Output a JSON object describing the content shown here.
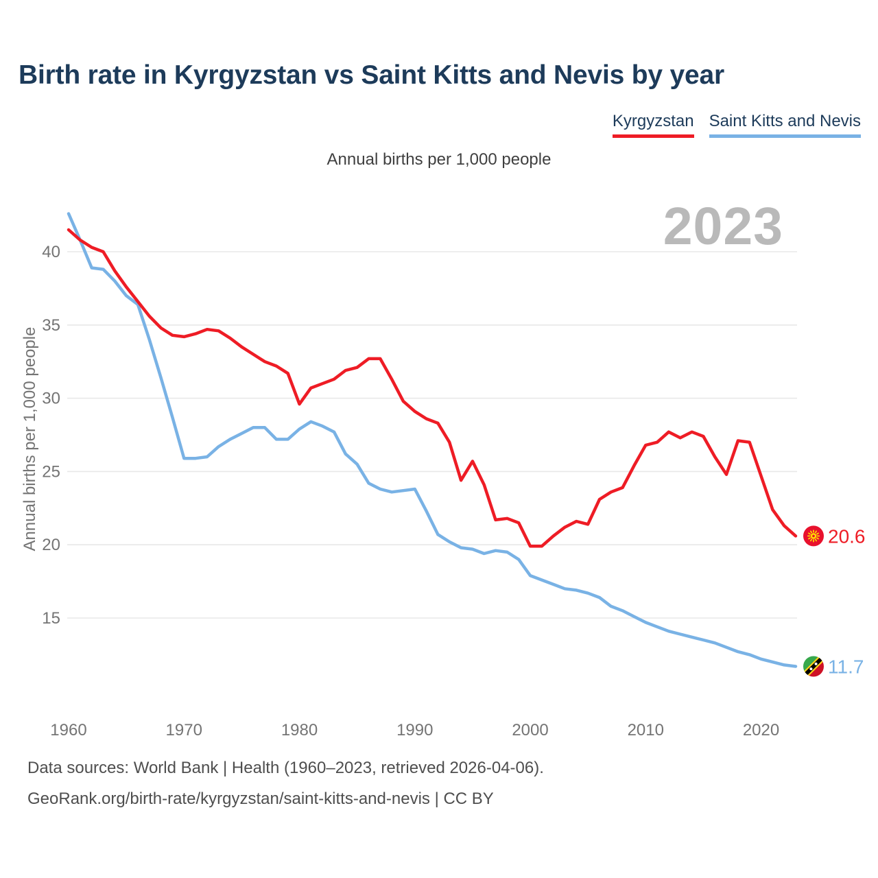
{
  "header": {
    "title": "Birth rate in Kyrgyzstan vs Saint Kitts and Nevis by year",
    "subtitle": "Annual births per 1,000 people"
  },
  "legend": [
    {
      "label": "Kyrgyzstan",
      "color": "#ee1c25"
    },
    {
      "label": "Saint Kitts and Nevis",
      "color": "#79b2e5"
    }
  ],
  "watermark": "2023",
  "footer": {
    "line1": "Data sources: World Bank | Health (1960–2023, retrieved 2026-04-06).",
    "line2": "GeoRank.org/birth-rate/kyrgyzstan/saint-kitts-and-nevis | CC BY"
  },
  "chart_data": {
    "type": "line",
    "title": "Birth rate in Kyrgyzstan vs Saint Kitts and Nevis by year",
    "xlabel": "",
    "ylabel": "Annual births per 1,000 people",
    "x_start": 1960,
    "x_end": 2023,
    "xticks": [
      1960,
      1970,
      1980,
      1990,
      2000,
      2010,
      2020
    ],
    "yticks": [
      15,
      20,
      25,
      30,
      35,
      40
    ],
    "ylim": [
      10.5,
      43
    ],
    "grid": "horizontal",
    "legend_position": "top-right",
    "series": [
      {
        "name": "Kyrgyzstan",
        "color": "#ee1c25",
        "end_label": "20.6",
        "values": [
          41.5,
          40.8,
          40.3,
          40.0,
          38.7,
          37.6,
          36.6,
          35.6,
          34.8,
          34.3,
          34.2,
          34.4,
          34.7,
          34.6,
          34.1,
          33.5,
          33.0,
          32.5,
          32.2,
          31.7,
          29.6,
          30.7,
          31.0,
          31.3,
          31.9,
          32.1,
          32.7,
          32.7,
          31.3,
          29.8,
          29.1,
          28.6,
          28.3,
          27.0,
          24.4,
          25.7,
          24.1,
          21.7,
          21.8,
          21.5,
          19.9,
          19.9,
          20.6,
          21.2,
          21.6,
          21.4,
          23.1,
          23.6,
          23.9,
          25.4,
          26.8,
          27.0,
          27.7,
          27.3,
          27.7,
          27.4,
          26.0,
          24.8,
          27.1,
          27.0,
          24.7,
          22.4,
          21.3,
          20.6
        ]
      },
      {
        "name": "Saint Kitts and Nevis",
        "color": "#79b2e5",
        "end_label": "11.7",
        "values": [
          42.6,
          40.8,
          38.9,
          38.8,
          38.0,
          37.0,
          36.4,
          34.0,
          31.4,
          28.7,
          25.9,
          25.9,
          26.0,
          26.7,
          27.2,
          27.6,
          28.0,
          28.0,
          27.2,
          27.2,
          27.9,
          28.4,
          28.1,
          27.7,
          26.2,
          25.5,
          24.2,
          23.8,
          23.6,
          23.7,
          23.8,
          22.3,
          20.7,
          20.2,
          19.8,
          19.7,
          19.4,
          19.6,
          19.5,
          19.0,
          17.9,
          17.6,
          17.3,
          17.0,
          16.9,
          16.7,
          16.4,
          15.8,
          15.5,
          15.1,
          14.7,
          14.4,
          14.1,
          13.9,
          13.7,
          13.5,
          13.3,
          13.0,
          12.7,
          12.5,
          12.2,
          12.0,
          11.8,
          11.7
        ]
      }
    ]
  }
}
